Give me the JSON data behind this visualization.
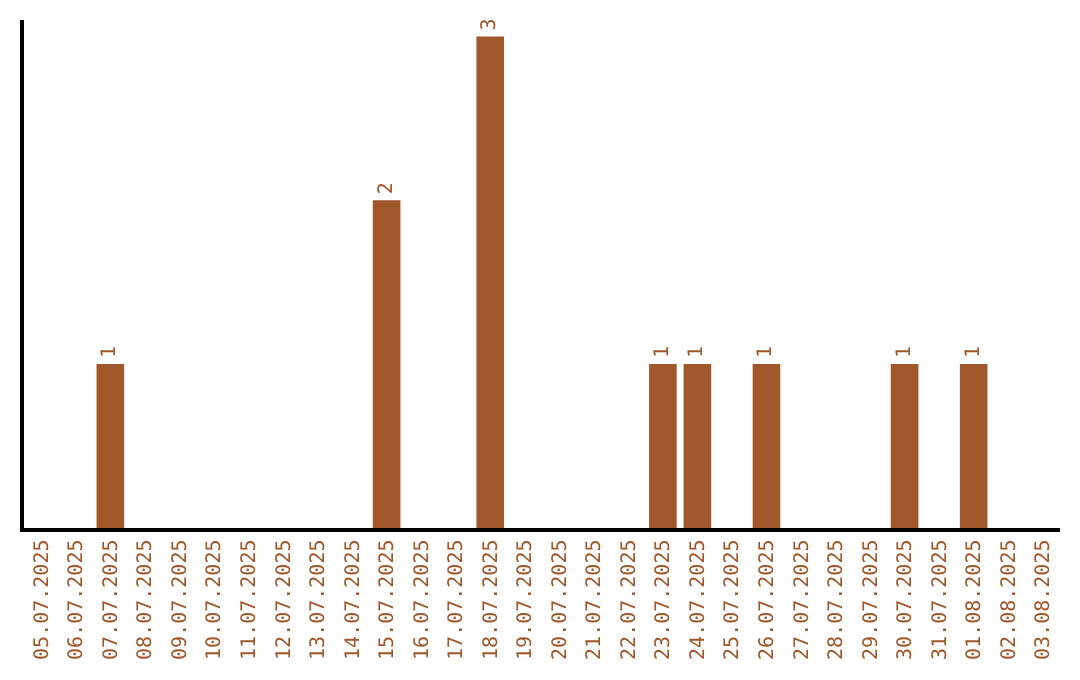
{
  "chart_data": {
    "type": "bar",
    "categories": [
      "05.07.2025",
      "06.07.2025",
      "07.07.2025",
      "08.07.2025",
      "09.07.2025",
      "10.07.2025",
      "11.07.2025",
      "12.07.2025",
      "13.07.2025",
      "14.07.2025",
      "15.07.2025",
      "16.07.2025",
      "17.07.2025",
      "18.07.2025",
      "19.07.2025",
      "20.07.2025",
      "21.07.2025",
      "22.07.2025",
      "23.07.2025",
      "24.07.2025",
      "25.07.2025",
      "26.07.2025",
      "27.07.2025",
      "28.07.2025",
      "29.07.2025",
      "30.07.2025",
      "31.07.2025",
      "01.08.2025",
      "02.08.2025",
      "03.08.2025"
    ],
    "values": [
      null,
      null,
      1,
      null,
      null,
      null,
      null,
      null,
      null,
      null,
      2,
      null,
      null,
      3,
      null,
      null,
      null,
      null,
      1,
      1,
      null,
      1,
      null,
      null,
      null,
      1,
      null,
      1,
      null,
      null
    ],
    "color": "#a0572a",
    "ylim": [
      0,
      3.1
    ],
    "data_labels": true,
    "tick_labels": "x"
  }
}
